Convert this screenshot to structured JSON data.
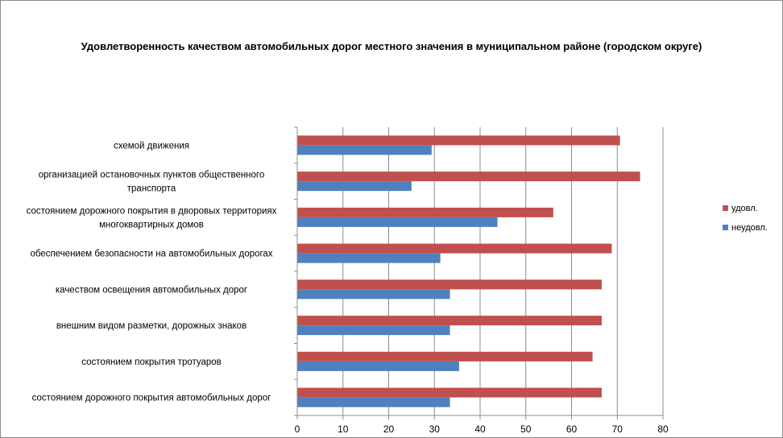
{
  "chart_data": {
    "type": "bar",
    "orientation": "horizontal",
    "title": "Удовлетворенность качеством автомобильных дорог местного значения в муниципальном районе (городском округе)",
    "categories": [
      [
        "схемой движения"
      ],
      [
        "организацией остановочных пунктов общественного",
        "транспорта"
      ],
      [
        "состоянием дорожного покрытия в дворовых территориях",
        "многоквартирных домов"
      ],
      [
        "обеспечением  безопасности на автомобильных дорогах"
      ],
      [
        "качеством освещения  автомобильных дорог"
      ],
      [
        "внешним  видом разметки, дорожных знаков"
      ],
      [
        "состоянием покрытия тротуаров"
      ],
      [
        "состоянием дорожного покрытия автомобильных дорог"
      ]
    ],
    "series": [
      {
        "name": "удовл.",
        "color": "#c0504d",
        "values": [
          70.6,
          75,
          56,
          68.8,
          66.6,
          66.6,
          64.6,
          66.6
        ]
      },
      {
        "name": "неудовл.",
        "color": "#4f81bd",
        "values": [
          29.4,
          25,
          43.8,
          31.3,
          33.4,
          33.4,
          35.4,
          33.4
        ]
      }
    ],
    "xlim": [
      0,
      80
    ],
    "xticks": [
      0,
      10,
      20,
      30,
      40,
      50,
      60,
      70,
      80
    ],
    "grid": true,
    "legend_position": "right"
  }
}
